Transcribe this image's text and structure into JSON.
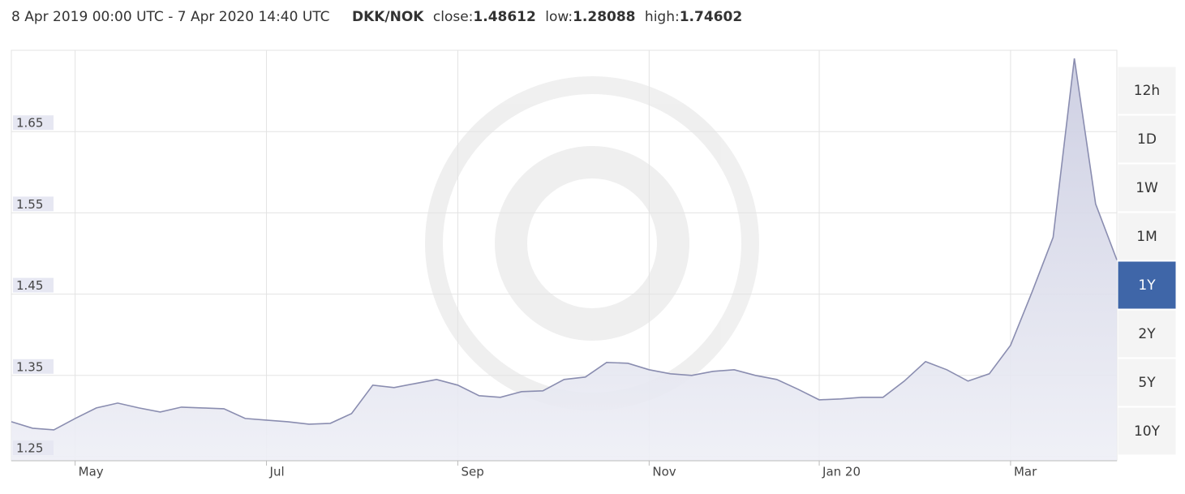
{
  "header": {
    "range": "8 Apr 2019 00:00 UTC - 7 Apr 2020 14:40 UTC",
    "pair": "DKK/NOK",
    "close_label": "close:",
    "close": 1.48612,
    "low_label": "low:",
    "low": 1.28088,
    "high_label": "high:",
    "high": 1.74602
  },
  "chart_data": {
    "type": "area",
    "categories": [
      null,
      null,
      null,
      "May",
      null,
      null,
      null,
      null,
      null,
      null,
      null,
      null,
      "Jul",
      null,
      null,
      null,
      null,
      null,
      null,
      null,
      null,
      "Sep",
      null,
      null,
      null,
      null,
      null,
      null,
      null,
      null,
      "Nov",
      null,
      null,
      null,
      null,
      null,
      null,
      null,
      "Jan 20",
      null,
      null,
      null,
      null,
      null,
      null,
      null,
      null,
      "Mar",
      null,
      null,
      null,
      null,
      null
    ],
    "series": [
      {
        "name": "DKK/NOK",
        "color": "#8a8db0",
        "values": [
          1.293,
          1.285,
          1.283,
          1.297,
          1.31,
          1.316,
          1.31,
          1.305,
          1.311,
          1.31,
          1.309,
          1.297,
          1.295,
          1.293,
          1.29,
          1.291,
          1.303,
          1.338,
          1.335,
          1.34,
          1.345,
          1.338,
          1.325,
          1.323,
          1.33,
          1.331,
          1.345,
          1.348,
          1.366,
          1.365,
          1.357,
          1.352,
          1.35,
          1.355,
          1.357,
          1.35,
          1.345,
          1.333,
          1.32,
          1.321,
          1.323,
          1.323,
          1.343,
          1.367,
          1.357,
          1.343,
          1.352,
          1.387,
          1.452,
          1.52,
          1.74,
          1.561,
          1.492
        ]
      }
    ],
    "ylim": [
      1.245,
      1.75
    ],
    "yticks": [
      1.25,
      1.35,
      1.45,
      1.55,
      1.65
    ],
    "grid": true
  },
  "range_buttons": {
    "items": [
      "12h",
      "1D",
      "1W",
      "1M",
      "1Y",
      "2Y",
      "5Y",
      "10Y"
    ],
    "active": 4
  }
}
